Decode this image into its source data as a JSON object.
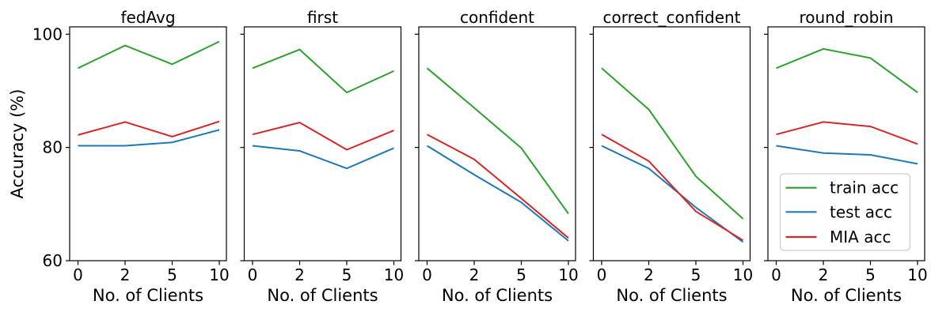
{
  "chart_data": {
    "type": "line",
    "ylabel": "Accuracy (%)",
    "xlabel": "No. of Clients",
    "ylim": [
      60,
      101.3
    ],
    "yticks": [
      100,
      80,
      60
    ],
    "ytick_labels": [
      "100",
      "80",
      "60"
    ],
    "xtick_labels": [
      "0",
      "2",
      "5",
      "10"
    ],
    "grid": false,
    "legend_position": "lower-left-of-last-panel",
    "panels": [
      {
        "title": "fedAvg",
        "series": [
          {
            "name": "train acc",
            "color": "#2ca02c",
            "values": [
              94.0,
              98.0,
              94.7,
              98.7
            ]
          },
          {
            "name": "test acc",
            "color": "#1f77b4",
            "values": [
              80.3,
              80.3,
              80.9,
              83.1
            ]
          },
          {
            "name": "MIA acc",
            "color": "#d62728",
            "values": [
              82.2,
              84.5,
              81.9,
              84.6
            ]
          }
        ]
      },
      {
        "title": "first",
        "series": [
          {
            "name": "train acc",
            "color": "#2ca02c",
            "values": [
              94.0,
              97.3,
              89.7,
              93.5
            ]
          },
          {
            "name": "test acc",
            "color": "#1f77b4",
            "values": [
              80.3,
              79.4,
              76.3,
              79.9
            ]
          },
          {
            "name": "MIA acc",
            "color": "#d62728",
            "values": [
              82.3,
              84.4,
              79.6,
              83.0
            ]
          }
        ]
      },
      {
        "title": "confident",
        "series": [
          {
            "name": "train acc",
            "color": "#2ca02c",
            "values": [
              94.0,
              87.0,
              79.9,
              68.3
            ]
          },
          {
            "name": "test acc",
            "color": "#1f77b4",
            "values": [
              80.3,
              75.2,
              70.3,
              63.5
            ]
          },
          {
            "name": "MIA acc",
            "color": "#d62728",
            "values": [
              82.3,
              77.9,
              71.0,
              64.0
            ]
          }
        ]
      },
      {
        "title": "correct_confident",
        "series": [
          {
            "name": "train acc",
            "color": "#2ca02c",
            "values": [
              94.0,
              86.7,
              74.9,
              67.4
            ]
          },
          {
            "name": "test acc",
            "color": "#1f77b4",
            "values": [
              80.3,
              76.3,
              69.4,
              63.3
            ]
          },
          {
            "name": "MIA acc",
            "color": "#d62728",
            "values": [
              82.3,
              77.6,
              68.7,
              63.6
            ]
          }
        ]
      },
      {
        "title": "round_robin",
        "series": [
          {
            "name": "train acc",
            "color": "#2ca02c",
            "values": [
              94.0,
              97.4,
              95.8,
              89.7
            ]
          },
          {
            "name": "test acc",
            "color": "#1f77b4",
            "values": [
              80.3,
              79.0,
              78.7,
              77.1
            ]
          },
          {
            "name": "MIA acc",
            "color": "#d62728",
            "values": [
              82.3,
              84.5,
              83.7,
              80.6
            ]
          }
        ]
      }
    ],
    "legend": {
      "entries": [
        {
          "label": "train acc",
          "color": "#2ca02c"
        },
        {
          "label": "test acc",
          "color": "#1f77b4"
        },
        {
          "label": "MIA acc",
          "color": "#d62728"
        }
      ]
    }
  }
}
